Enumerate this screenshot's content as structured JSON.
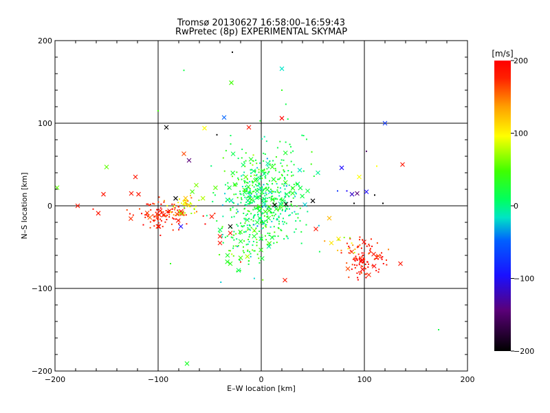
{
  "chart_data": {
    "type": "scatter",
    "title": "Tromsø 20130627 16:58:00–16:59:43",
    "subtitle": "RwPretec (8p) EXPERIMENTAL SKYMAP",
    "xlabel": "E–W location [km]",
    "ylabel": "N–S location [km]",
    "xlim": [
      -200,
      200
    ],
    "ylim": [
      -200,
      200
    ],
    "xticks": [
      -200,
      -100,
      0,
      100,
      200
    ],
    "yticks": [
      -200,
      -100,
      0,
      100,
      200
    ],
    "xtick_labels": [
      "−200",
      "−100",
      "0",
      "100",
      "200"
    ],
    "ytick_labels": [
      "−200",
      "−100",
      "0",
      "100",
      "200"
    ],
    "grid": true,
    "colorbar": {
      "label": "[m/s]",
      "range": [
        -200,
        200
      ],
      "ticks": [
        200,
        100,
        0,
        -100,
        -200
      ],
      "tick_labels": [
        "200",
        "100",
        "0",
        "−100",
        "−200"
      ],
      "colormap": "black-purple-blue-cyan-green-yellow-red"
    },
    "markers": {
      "cross": "x",
      "dot": "."
    },
    "clusters": [
      {
        "x": 0,
        "y": 5,
        "sx": 20,
        "sy": 28,
        "n": 560,
        "v": 8,
        "dv": 22
      },
      {
        "x": -95,
        "y": -12,
        "sx": 14,
        "sy": 8,
        "n": 110,
        "v": 185,
        "dv": 15
      },
      {
        "x": -72,
        "y": -2,
        "sx": 8,
        "sy": 8,
        "n": 45,
        "v": 115,
        "dv": 35
      },
      {
        "x": 100,
        "y": -65,
        "sx": 10,
        "sy": 11,
        "n": 110,
        "v": 188,
        "dv": 12
      },
      {
        "x": 85,
        "y": -48,
        "sx": 8,
        "sy": 6,
        "n": 15,
        "v": 135,
        "dv": 40
      },
      {
        "x": -18,
        "y": -55,
        "sx": 10,
        "sy": 12,
        "n": 30,
        "v": 45,
        "dv": 25
      },
      {
        "x": 25,
        "y": 70,
        "sx": 15,
        "sy": 22,
        "n": 25,
        "v": 10,
        "dv": 15
      }
    ],
    "points": [
      {
        "x": -28,
        "y": 186,
        "v": -200,
        "m": "dot"
      },
      {
        "x": -75,
        "y": 164,
        "v": 10,
        "m": "dot"
      },
      {
        "x": 20,
        "y": 166,
        "v": -20,
        "m": "cross"
      },
      {
        "x": -29,
        "y": 149,
        "v": 40,
        "m": "cross"
      },
      {
        "x": 20,
        "y": 140,
        "v": 30,
        "m": "dot"
      },
      {
        "x": -100,
        "y": 115,
        "v": 40,
        "m": "dot"
      },
      {
        "x": -36,
        "y": 107,
        "v": -60,
        "m": "cross"
      },
      {
        "x": 20,
        "y": 106,
        "v": 200,
        "m": "cross"
      },
      {
        "x": 120,
        "y": 100,
        "v": -80,
        "m": "cross"
      },
      {
        "x": -92,
        "y": 95,
        "v": -200,
        "m": "cross"
      },
      {
        "x": -55,
        "y": 94,
        "v": 100,
        "m": "cross"
      },
      {
        "x": -12,
        "y": 95,
        "v": 190,
        "m": "cross"
      },
      {
        "x": -43,
        "y": 86,
        "v": -200,
        "m": "dot"
      },
      {
        "x": -70,
        "y": 55,
        "v": -150,
        "m": "cross"
      },
      {
        "x": -75,
        "y": 63,
        "v": 170,
        "m": "cross"
      },
      {
        "x": 102,
        "y": 66,
        "v": -160,
        "m": "dot"
      },
      {
        "x": -150,
        "y": 47,
        "v": 50,
        "m": "cross"
      },
      {
        "x": 137,
        "y": 50,
        "v": 190,
        "m": "cross"
      },
      {
        "x": 112,
        "y": 48,
        "v": 100,
        "m": "dot"
      },
      {
        "x": 78,
        "y": 46,
        "v": -100,
        "m": "cross"
      },
      {
        "x": 95,
        "y": 35,
        "v": 100,
        "m": "cross"
      },
      {
        "x": 55,
        "y": 40,
        "v": -10,
        "m": "cross"
      },
      {
        "x": -122,
        "y": 35,
        "v": 190,
        "m": "cross"
      },
      {
        "x": -126,
        "y": 15,
        "v": 190,
        "m": "cross"
      },
      {
        "x": -119,
        "y": 14,
        "v": 190,
        "m": "cross"
      },
      {
        "x": -153,
        "y": 14,
        "v": 190,
        "m": "cross"
      },
      {
        "x": -178,
        "y": 0,
        "v": 190,
        "m": "cross"
      },
      {
        "x": -163,
        "y": -4,
        "v": 190,
        "m": "dot"
      },
      {
        "x": -158,
        "y": -9,
        "v": 190,
        "m": "cross"
      },
      {
        "x": -198,
        "y": 22,
        "v": 50,
        "m": "cross"
      },
      {
        "x": -83,
        "y": 9,
        "v": -200,
        "m": "cross"
      },
      {
        "x": -78,
        "y": -25,
        "v": -100,
        "m": "cross"
      },
      {
        "x": 102,
        "y": 17,
        "v": -100,
        "m": "cross"
      },
      {
        "x": 88,
        "y": 14,
        "v": -120,
        "m": "cross"
      },
      {
        "x": 93,
        "y": 15,
        "v": -150,
        "m": "cross"
      },
      {
        "x": 83,
        "y": 18,
        "v": -100,
        "m": "dot"
      },
      {
        "x": 110,
        "y": 13,
        "v": -200,
        "m": "dot"
      },
      {
        "x": 74,
        "y": 18,
        "v": -80,
        "m": "dot"
      },
      {
        "x": 90,
        "y": 3,
        "v": -200,
        "m": "dot"
      },
      {
        "x": 118,
        "y": 3,
        "v": -200,
        "m": "dot"
      },
      {
        "x": 50,
        "y": 6,
        "v": -200,
        "m": "cross"
      },
      {
        "x": 24,
        "y": 2,
        "v": -200,
        "m": "cross"
      },
      {
        "x": 13,
        "y": 1,
        "v": -200,
        "m": "cross"
      },
      {
        "x": 29,
        "y": 5,
        "v": -200,
        "m": "dot"
      },
      {
        "x": -30,
        "y": -25,
        "v": -200,
        "m": "cross"
      },
      {
        "x": -48,
        "y": -13,
        "v": 190,
        "m": "cross"
      },
      {
        "x": -40,
        "y": -37,
        "v": 190,
        "m": "cross"
      },
      {
        "x": -30,
        "y": -33,
        "v": 190,
        "m": "cross"
      },
      {
        "x": -40,
        "y": -45,
        "v": 190,
        "m": "cross"
      },
      {
        "x": -20,
        "y": -68,
        "v": 190,
        "m": "dot"
      },
      {
        "x": -30,
        "y": -70,
        "v": 30,
        "m": "cross"
      },
      {
        "x": -20,
        "y": -63,
        "v": 40,
        "m": "cross"
      },
      {
        "x": 53,
        "y": -28,
        "v": 190,
        "m": "cross"
      },
      {
        "x": 23,
        "y": -90,
        "v": 190,
        "m": "cross"
      },
      {
        "x": 135,
        "y": -70,
        "v": 190,
        "m": "cross"
      },
      {
        "x": 66,
        "y": -15,
        "v": 130,
        "m": "cross"
      },
      {
        "x": 68,
        "y": -45,
        "v": 110,
        "m": "cross"
      },
      {
        "x": 75,
        "y": -40,
        "v": 110,
        "m": "cross"
      },
      {
        "x": -88,
        "y": -70,
        "v": 30,
        "m": "dot"
      },
      {
        "x": -72,
        "y": -191,
        "v": 20,
        "m": "cross"
      },
      {
        "x": 172,
        "y": -150,
        "v": 10,
        "m": "dot"
      },
      {
        "x": 45,
        "y": 18,
        "v": 10,
        "m": "cross"
      },
      {
        "x": -15,
        "y": 35,
        "v": 50,
        "m": "cross"
      },
      {
        "x": -63,
        "y": 25,
        "v": 60,
        "m": "cross"
      }
    ]
  }
}
